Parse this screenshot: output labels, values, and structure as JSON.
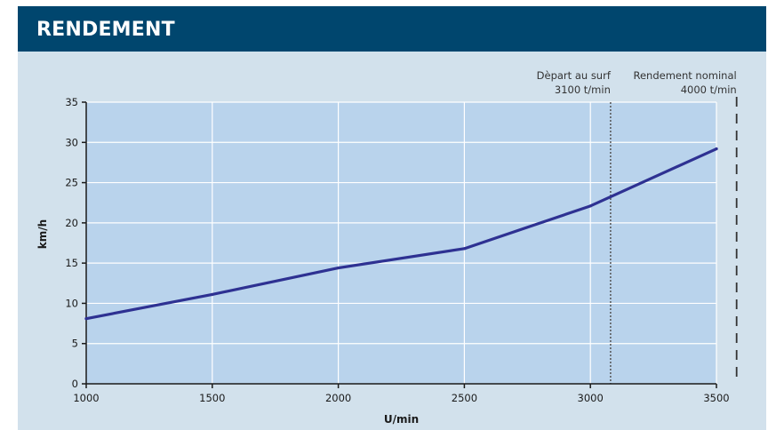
{
  "header": {
    "title": "RENDEMENT"
  },
  "colors": {
    "header_bg": "#00466e",
    "panel_bg": "#d2e1ec",
    "plot_bg": "#b9d3ec",
    "line": "#2e3192",
    "grid": "#ffffff"
  },
  "chart_data": {
    "type": "line",
    "title": "",
    "xlabel": "U/min",
    "ylabel": "km/h",
    "xlim": [
      1000,
      3500
    ],
    "ylim": [
      0,
      35
    ],
    "x_ticks": [
      "1000",
      "1500",
      "2000",
      "2500",
      "3000",
      "3500"
    ],
    "y_ticks": [
      "0",
      "5",
      "10",
      "15",
      "20",
      "25",
      "30",
      "35"
    ],
    "grid": true,
    "series": [
      {
        "x": [
          1000,
          1500,
          2000,
          2500,
          3000,
          3500
        ],
        "y": [
          8.1,
          11.1,
          14.4,
          16.8,
          22.1,
          29.2
        ]
      }
    ],
    "annotations": [
      {
        "x": 3080,
        "line_style": "dotted",
        "label_line1": "Dèpart au surf",
        "label_line2": "3100 t/min"
      },
      {
        "x": 3580,
        "line_style": "dashed",
        "label_line1": "Rendement nominal",
        "label_line2": "4000 t/min"
      }
    ]
  }
}
